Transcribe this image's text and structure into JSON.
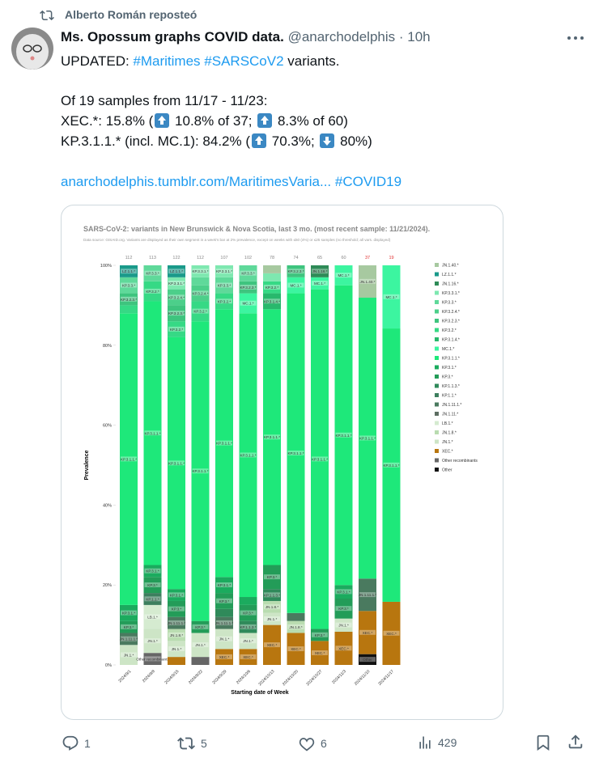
{
  "repost": {
    "text": "Alberto Román reposteó"
  },
  "author": {
    "name": "Ms. Opossum graphs COVID data.",
    "handle": "@anarchodelphis",
    "time": "· 10h"
  },
  "post": {
    "line1": [
      "UPDATED: ",
      "#Maritimes",
      " ",
      "#SARSCoV2",
      " variants."
    ],
    "line2": "Of 19 samples from 11/17 - 11/23:",
    "line3": [
      "XEC.*: 15.8% (",
      " 10.8% of 37; ",
      " 8.3% of 60)"
    ],
    "line3_arrows": [
      "up",
      "up"
    ],
    "line4": [
      "KP.3.1.1.* (incl. MC.1): 84.2% (",
      " 70.3%; ",
      " 80%)"
    ],
    "line4_arrows": [
      "up",
      "down"
    ],
    "link": "anarchodelphis.tumblr.com/MaritimesVaria...",
    "hashtag": "#COVID19"
  },
  "actions": {
    "replies": "1",
    "reposts": "5",
    "likes": "6",
    "views": "429"
  },
  "chart_data": {
    "type": "stacked_bar",
    "title": "SARS-CoV-2: variants in New Brunswick & Nova Scotia, last 3 mo. (most recent sample: 11/21/2024).",
    "subtitle": "Data source: GISAID.org. Variants are displayed as their own segment in a week's bar at 2% prevalence, except on weeks with ≤50 (4%) or ≤25 samples (no threshold; all vars. displayed)",
    "y_label": "Prevalence",
    "x_label": "Starting date of Week",
    "categories": [
      "2024/9/1",
      "2024/9/8",
      "2024/9/15",
      "2024/9/22",
      "2024/9/29",
      "2024/10/6",
      "2024/10/13",
      "2024/10/20",
      "2024/10/27",
      "2024/11/3",
      "2024/11/10",
      "2024/11/17"
    ],
    "sample_counts": [
      112,
      113,
      122,
      112,
      107,
      102,
      78,
      74,
      65,
      60,
      37,
      19
    ],
    "sample_count_colors": [
      "#888",
      "#888",
      "#888",
      "#888",
      "#888",
      "#888",
      "#888",
      "#888",
      "#888",
      "#888",
      "#e03030",
      "#e03030"
    ],
    "ylim": [
      0,
      100
    ],
    "yticks": [
      {
        "value": 0,
        "label": "0%"
      },
      {
        "value": 20,
        "label": "20%"
      },
      {
        "value": 40,
        "label": "40%"
      },
      {
        "value": 60,
        "label": "60%"
      },
      {
        "value": 80,
        "label": "80%"
      },
      {
        "value": 100,
        "label": "100%"
      }
    ],
    "series": [
      {
        "name": "JN.1.40.*",
        "color": "#a7c9a0",
        "values": [
          0,
          0,
          0,
          0,
          0,
          0,
          2,
          0,
          0,
          0,
          8.1,
          0
        ]
      },
      {
        "name": "LZ.1.1.*",
        "color": "#1a9a8a",
        "values": [
          3,
          0,
          3,
          0,
          0,
          0,
          0,
          0,
          0,
          0,
          0,
          0
        ]
      },
      {
        "name": "JN.1.16.*",
        "color": "#2e8b57",
        "values": [
          0,
          0,
          0,
          0,
          0,
          0,
          0,
          0,
          3,
          0,
          0,
          0
        ]
      },
      {
        "name": "KP.3.3.1.*",
        "color": "#7ee8b0",
        "values": [
          0,
          0,
          3,
          3,
          3,
          0,
          2,
          0,
          0,
          0,
          0,
          0
        ]
      },
      {
        "name": "KP.3.3.*",
        "color": "#5fd99a",
        "values": [
          4,
          4,
          0,
          2,
          4,
          4,
          0,
          0,
          0,
          0,
          0,
          0
        ]
      },
      {
        "name": "KP.3.2.4.*",
        "color": "#4ccf8a",
        "values": [
          0,
          0,
          4,
          4,
          0,
          0,
          0,
          0,
          0,
          0,
          0,
          0
        ]
      },
      {
        "name": "KP.3.2.3.*",
        "color": "#3ec47e",
        "values": [
          3,
          0,
          4,
          0,
          0,
          3,
          0,
          3,
          0,
          0,
          0,
          0
        ]
      },
      {
        "name": "KP.3.2.*",
        "color": "#36d985",
        "values": [
          2,
          5,
          4,
          5,
          4,
          0,
          3,
          0,
          0,
          0,
          0,
          0
        ]
      },
      {
        "name": "KP.3.1.4.*",
        "color": "#28b86c",
        "values": [
          0,
          0,
          0,
          0,
          0,
          0,
          4,
          0,
          0,
          0,
          0,
          0
        ]
      },
      {
        "name": "MC.1.*",
        "color": "#3cf5a0",
        "values": [
          0,
          0,
          0,
          0,
          0,
          5,
          0,
          4,
          3,
          5,
          0,
          15.8
        ]
      },
      {
        "name": "KP.3.1.1.*",
        "color": "#1ee87a",
        "values": [
          73,
          66,
          63,
          75,
          67,
          71,
          64,
          80,
          85,
          75,
          70.3,
          68.4
        ]
      },
      {
        "name": "KP.3.1.*",
        "color": "#1bab5e",
        "values": [
          4,
          3,
          3,
          0,
          4,
          2,
          0,
          0,
          0,
          3.4,
          0,
          0
        ]
      },
      {
        "name": "KP.3.*",
        "color": "#239c58",
        "values": [
          3,
          4,
          4,
          3,
          4,
          4,
          6,
          0,
          3,
          5,
          0,
          0
        ]
      },
      {
        "name": "KP.1.1.3.*",
        "color": "#2f8a5a",
        "values": [
          0,
          0,
          0,
          0,
          2,
          3,
          3,
          0,
          0,
          0,
          0,
          0
        ]
      },
      {
        "name": "KP.1.1.*",
        "color": "#3d7f5e",
        "values": [
          0,
          3,
          0,
          0,
          0,
          0,
          0,
          0,
          0,
          0,
          0,
          0
        ]
      },
      {
        "name": "JN.1.11.1.*",
        "color": "#4a7a5f",
        "values": [
          3,
          0,
          3,
          0,
          3,
          0,
          0,
          2,
          0,
          0,
          8.1,
          0
        ]
      },
      {
        "name": "JN.1.11.*",
        "color": "#5d6e62",
        "values": [
          0,
          0,
          0,
          0,
          0,
          0,
          0,
          0,
          0,
          0,
          0,
          0
        ]
      },
      {
        "name": "LB.1.*",
        "color": "#d5ebd0",
        "values": [
          0,
          6,
          0,
          0,
          0,
          0,
          0,
          0,
          0,
          0,
          0,
          0
        ]
      },
      {
        "name": "JN.1.8.*",
        "color": "#b9dcb0",
        "values": [
          0,
          0,
          3,
          0,
          0,
          0,
          3,
          3,
          0,
          0,
          0,
          0
        ]
      },
      {
        "name": "JN.1.*",
        "color": "#cde5c6",
        "values": [
          5,
          6,
          4,
          6,
          5,
          4,
          3,
          0,
          0,
          3.3,
          0,
          0
        ]
      },
      {
        "name": "XEC.*",
        "color": "#b8760f",
        "values": [
          0,
          0,
          2,
          0,
          4,
          4,
          10,
          8,
          6,
          8.3,
          10.8,
          15.8
        ]
      },
      {
        "name": "Other recombinants",
        "color": "#666666",
        "values": [
          0,
          3,
          0,
          2,
          0,
          0,
          0,
          0,
          0,
          0,
          0,
          0
        ]
      },
      {
        "name": "Other",
        "color": "#111111",
        "values": [
          0,
          0,
          0,
          0,
          0,
          0,
          0,
          0,
          0,
          0,
          2.7,
          0
        ]
      }
    ]
  }
}
